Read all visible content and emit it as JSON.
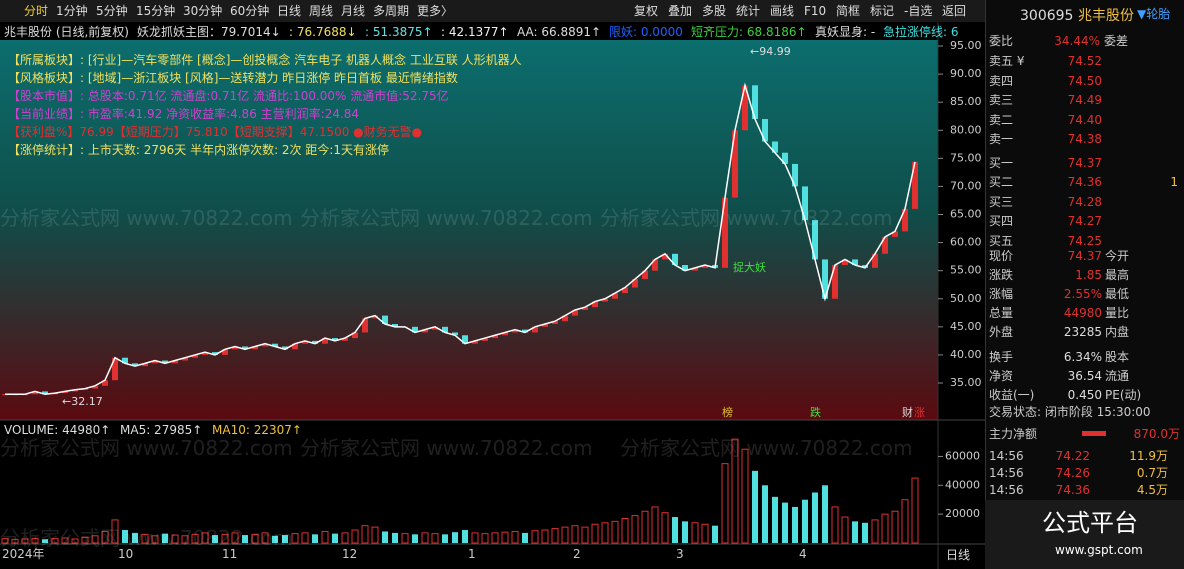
{
  "toolbar": {
    "left": [
      "分时",
      "1分钟",
      "5分钟",
      "15分钟",
      "30分钟",
      "60分钟",
      "日线",
      "周线",
      "月线",
      "多周期",
      "更多〉"
    ],
    "right": [
      "复权",
      "叠加",
      "多股",
      "统计",
      "画线",
      "F10",
      "简框",
      "标记",
      "-自选",
      "返回"
    ]
  },
  "indicator": [
    "兆丰股份 (日线,前复权)",
    "妖龙抓妖主图：79.7014↓",
    ": 76.7688↓",
    ": 51.3875↑",
    ": 42.1377↑",
    "AA: 66.8891↑",
    "限妖: 0.0000",
    "短齐压力: 68.8186↑",
    "真妖显身: -",
    "急拉涨停线: 6"
  ],
  "info_lines": [
    "【所属板块】: [行业]—汽车零部件 [概念]—创投概念 汽车电子 机器人概念 工业互联 人形机器人",
    "【风格板块】: [地域]—浙江板块 [风格]—送转潜力 昨日涨停 昨日首板 最近情绪指数",
    "【股本市值】: 总股本:0.71亿 流通盘:0.71亿 流通比:100.00% 流通市值:52.75亿",
    "【当前业绩】: 市盈率:41.92 净资收益率:4.86 主营利润率:24.84",
    "【获利盘%】76.99【短期压力】75.810【短期支撑】47.1500 ●财务无警●",
    "【涨停统计】: 上市天数: 2796天 半年内涨停次数: 2次 距今:1天有涨停"
  ],
  "watermark": "分析家公式网 www.70822.com",
  "chart_data": {
    "type": "line",
    "color": "#ffffff",
    "values": [
      33,
      33,
      33,
      33.5,
      33,
      33.2,
      33.5,
      33.8,
      34,
      34.5,
      35.5,
      39.5,
      38.5,
      38,
      38.5,
      39,
      38.5,
      39,
      39.5,
      40,
      40.5,
      40,
      41,
      41.5,
      41,
      41.5,
      42,
      41.5,
      41,
      42,
      42.5,
      42,
      43,
      42.5,
      43,
      44,
      46.5,
      47,
      45.5,
      45,
      45,
      44,
      44.5,
      45,
      44,
      43.5,
      42,
      42.5,
      43,
      43.5,
      44,
      44.5,
      44,
      45,
      45.5,
      46,
      47,
      48,
      48.5,
      49.5,
      50,
      51,
      52,
      53.5,
      55,
      57,
      58,
      56,
      55,
      55.5,
      56,
      55.5,
      68,
      80,
      88,
      82,
      78,
      76,
      74,
      70,
      64,
      57,
      50,
      56,
      57,
      56,
      55.5,
      58,
      61,
      62,
      66,
      74.37
    ],
    "ylim": [
      35,
      95
    ],
    "yticks": [
      {
        "value": 35,
        "label": "35.00"
      },
      {
        "value": 40,
        "label": "40.00"
      },
      {
        "value": 45,
        "label": "45.00"
      },
      {
        "value": 50,
        "label": "50.00"
      },
      {
        "value": 55,
        "label": "55.00"
      },
      {
        "value": 60,
        "label": "60.00"
      },
      {
        "value": 65,
        "label": "65.00"
      },
      {
        "value": 70,
        "label": "70.00"
      },
      {
        "value": 75,
        "label": "75.00"
      },
      {
        "value": 80,
        "label": "80.00"
      },
      {
        "value": 85,
        "label": "85.00"
      },
      {
        "value": 90,
        "label": "90.00"
      },
      {
        "value": 95,
        "label": "95.00"
      }
    ],
    "annotations": [
      "←94.99",
      "←32.17",
      "捉大妖",
      "榜",
      "跌",
      "财",
      "涨"
    ],
    "volume": {
      "legend": [
        "VOLUME: 44980↑",
        "MA5: 27985↑",
        "MA10: 22307↑"
      ],
      "values": [
        3000,
        2500,
        2800,
        3200,
        2600,
        3000,
        3500,
        2800,
        4000,
        5000,
        8000,
        16000,
        9000,
        7000,
        6000,
        5000,
        6500,
        5500,
        5000,
        6000,
        7000,
        5500,
        6000,
        7000,
        5500,
        6000,
        7000,
        5000,
        5500,
        6500,
        7000,
        6000,
        8000,
        6500,
        7000,
        9000,
        12000,
        11000,
        8000,
        7000,
        6500,
        6000,
        7000,
        6500,
        6000,
        7500,
        9000,
        7000,
        6500,
        7000,
        7500,
        8000,
        7000,
        8500,
        9000,
        10000,
        11000,
        12000,
        11000,
        13000,
        14000,
        15000,
        17000,
        19000,
        22000,
        25000,
        21000,
        18000,
        15000,
        14000,
        13000,
        12000,
        55000,
        72000,
        65000,
        50000,
        40000,
        32000,
        28000,
        25000,
        30000,
        35000,
        40000,
        25000,
        18000,
        15000,
        14000,
        16000,
        20000,
        22000,
        30000,
        44980
      ],
      "ylim": [
        0,
        70000
      ],
      "yticks": [
        20000,
        40000,
        60000
      ]
    },
    "x_labels": [
      "2024年",
      "10",
      "11",
      "12",
      "1",
      "2",
      "3",
      "4"
    ],
    "period_button": "日线"
  },
  "quote": {
    "code": "300695",
    "name": "兆丰股份",
    "tag": "▼轮胎",
    "weibi_label": "委比",
    "weibi": "34.44%",
    "weicha_label": "委差",
    "book": [
      [
        "卖五 ¥",
        "74.52",
        ""
      ],
      [
        "卖四",
        "74.50",
        ""
      ],
      [
        "卖三",
        "74.49",
        ""
      ],
      [
        "卖二",
        "74.40",
        ""
      ],
      [
        "卖一",
        "74.38",
        ""
      ],
      [
        "买一",
        "74.37",
        ""
      ],
      [
        "买二",
        "74.36",
        "1"
      ],
      [
        "买三",
        "74.28",
        ""
      ],
      [
        "买四",
        "74.27",
        ""
      ],
      [
        "买五",
        "74.25",
        ""
      ]
    ],
    "fields": [
      [
        "现价",
        "74.37",
        "今开"
      ],
      [
        "涨跌",
        "1.85",
        "最高"
      ],
      [
        "涨幅",
        "2.55%",
        "最低"
      ],
      [
        "总量",
        "44980",
        "量比"
      ],
      [
        "外盘",
        "23285",
        "内盘"
      ],
      [
        "换手",
        "6.34%",
        "股本"
      ],
      [
        "净资",
        "36.54",
        "流通"
      ],
      [
        "收益(一)",
        "0.450",
        "PE(动)"
      ]
    ],
    "status": "交易状态: 闭市阶段 15:30:00",
    "net_label": "主力净额",
    "net_value": "870.0万",
    "trades": [
      [
        "14:56",
        "74.22",
        "11.9万"
      ],
      [
        "14:56",
        "74.26",
        "0.7万"
      ],
      [
        "14:56",
        "74.36",
        "4.5万"
      ]
    ],
    "logo": "公式平台",
    "logo_url": "www.gspt.com"
  }
}
